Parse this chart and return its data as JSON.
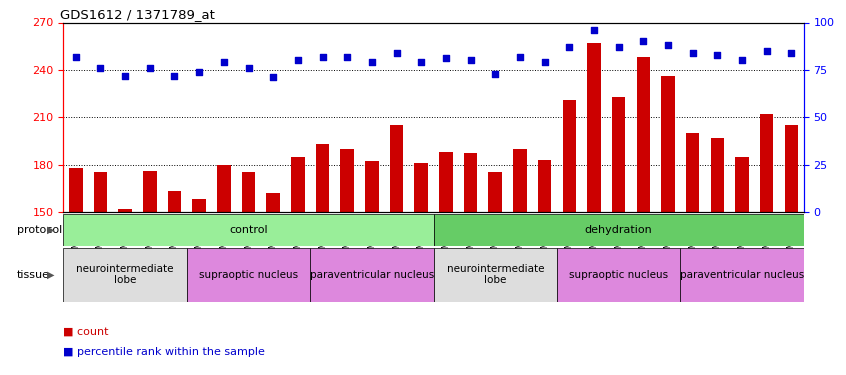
{
  "title": "GDS1612 / 1371789_at",
  "samples": [
    "GSM69787",
    "GSM69788",
    "GSM69789",
    "GSM69790",
    "GSM69791",
    "GSM69461",
    "GSM69462",
    "GSM69463",
    "GSM69464",
    "GSM69465",
    "GSM69475",
    "GSM69476",
    "GSM69477",
    "GSM69478",
    "GSM69479",
    "GSM69782",
    "GSM69783",
    "GSM69784",
    "GSM69785",
    "GSM69786",
    "GSM69268",
    "GSM69457",
    "GSM69458",
    "GSM69459",
    "GSM69460",
    "GSM69470",
    "GSM69471",
    "GSM69472",
    "GSM69473",
    "GSM69474"
  ],
  "counts": [
    178,
    175,
    152,
    176,
    163,
    158,
    180,
    175,
    162,
    185,
    193,
    190,
    182,
    205,
    181,
    188,
    187,
    175,
    190,
    183,
    221,
    257,
    223,
    248,
    236,
    200,
    197,
    185,
    212,
    205
  ],
  "percentiles": [
    82,
    76,
    72,
    76,
    72,
    74,
    79,
    76,
    71,
    80,
    82,
    82,
    79,
    84,
    79,
    81,
    80,
    73,
    82,
    79,
    87,
    96,
    87,
    90,
    88,
    84,
    83,
    80,
    85,
    84
  ],
  "ylim_left": [
    150,
    270
  ],
  "ylim_right": [
    0,
    100
  ],
  "yticks_left": [
    150,
    180,
    210,
    240,
    270
  ],
  "yticks_right": [
    0,
    25,
    50,
    75,
    100
  ],
  "bar_color": "#cc0000",
  "dot_color": "#0000cc",
  "protocol_groups": [
    {
      "label": "control",
      "start": 0,
      "end": 14,
      "color": "#99ee99"
    },
    {
      "label": "dehydration",
      "start": 15,
      "end": 29,
      "color": "#66cc66"
    }
  ],
  "tissue_groups": [
    {
      "label": "neurointermediate\nlobe",
      "start": 0,
      "end": 4,
      "color": "#dddddd"
    },
    {
      "label": "supraoptic nucleus",
      "start": 5,
      "end": 9,
      "color": "#dd88dd"
    },
    {
      "label": "paraventricular nucleus",
      "start": 10,
      "end": 14,
      "color": "#dd88dd"
    },
    {
      "label": "neurointermediate\nlobe",
      "start": 15,
      "end": 19,
      "color": "#dddddd"
    },
    {
      "label": "supraoptic nucleus",
      "start": 20,
      "end": 24,
      "color": "#dd88dd"
    },
    {
      "label": "paraventricular nucleus",
      "start": 25,
      "end": 29,
      "color": "#dd88dd"
    }
  ]
}
